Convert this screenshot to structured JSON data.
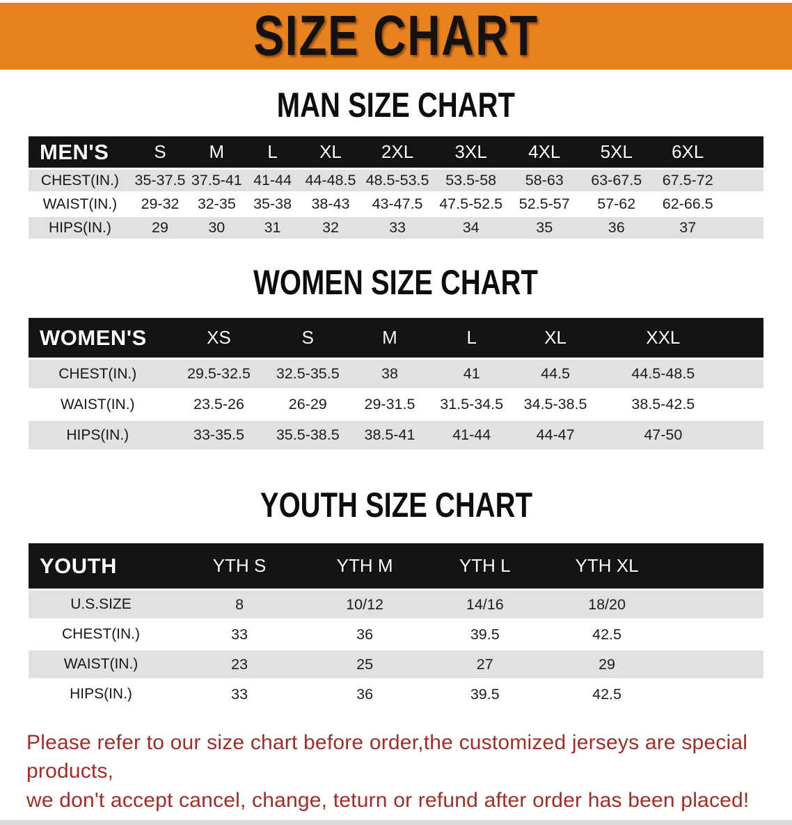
{
  "banner": {
    "title": "SIZE CHART"
  },
  "colors": {
    "banner_bg": "#E8821E",
    "table_header_bg": "#141414",
    "row_gray": "#E1E1E1",
    "footer_red": "#A62B24"
  },
  "sections": [
    {
      "heading": "MAN SIZE CHART",
      "corner_label": "MEN'S",
      "sizes": [
        "S",
        "M",
        "L",
        "XL",
        "2XL",
        "3XL",
        "4XL",
        "5XL",
        "6XL"
      ],
      "rows": [
        {
          "label": "CHEST(IN.)",
          "values": [
            "35-37.5",
            "37.5-41",
            "41-44",
            "44-48.5",
            "48.5-53.5",
            "53.5-58",
            "58-63",
            "63-67.5",
            "67.5-72"
          ]
        },
        {
          "label": "WAIST(IN.)",
          "values": [
            "29-32",
            "32-35",
            "35-38",
            "38-43",
            "43-47.5",
            "47.5-52.5",
            "52.5-57",
            "57-62",
            "62-66.5"
          ]
        },
        {
          "label": "HIPS(IN.)",
          "values": [
            "29",
            "30",
            "31",
            "32",
            "33",
            "34",
            "35",
            "36",
            "37"
          ]
        }
      ]
    },
    {
      "heading": "WOMEN SIZE CHART",
      "corner_label": "WOMEN'S",
      "sizes": [
        "XS",
        "S",
        "M",
        "L",
        "XL",
        "XXL"
      ],
      "rows": [
        {
          "label": "CHEST(IN.)",
          "values": [
            "29.5-32.5",
            "32.5-35.5",
            "38",
            "41",
            "44.5",
            "44.5-48.5"
          ]
        },
        {
          "label": "WAIST(IN.)",
          "values": [
            "23.5-26",
            "26-29",
            "29-31.5",
            "31.5-34.5",
            "34.5-38.5",
            "38.5-42.5"
          ]
        },
        {
          "label": "HIPS(IN.)",
          "values": [
            "33-35.5",
            "35.5-38.5",
            "38.5-41",
            "41-44",
            "44-47",
            "47-50"
          ]
        }
      ]
    },
    {
      "heading": "YOUTH SIZE CHART",
      "corner_label": "YOUTH",
      "sizes": [
        "YTH S",
        "YTH M",
        "YTH L",
        "YTH XL"
      ],
      "rows": [
        {
          "label": "U.S.SIZE",
          "values": [
            "8",
            "10/12",
            "14/16",
            "18/20"
          ]
        },
        {
          "label": "CHEST(IN.)",
          "values": [
            "33",
            "36",
            "39.5",
            "42.5"
          ]
        },
        {
          "label": "WAIST(IN.)",
          "values": [
            "23",
            "25",
            "27",
            "29"
          ]
        },
        {
          "label": "HIPS(IN.)",
          "values": [
            "33",
            "36",
            "39.5",
            "42.5"
          ]
        }
      ]
    }
  ],
  "footer": {
    "line1": "Please refer to our size chart before order,the customized jerseys are special products,",
    "line2": "we don't accept cancel, change, teturn or refund after order has been placed!"
  }
}
